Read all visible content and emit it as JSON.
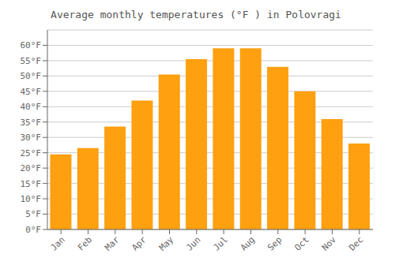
{
  "chart_data": {
    "type": "bar",
    "title": "Average monthly temperatures (°F ) in Polovragi",
    "categories": [
      "Jan",
      "Feb",
      "Mar",
      "Apr",
      "May",
      "Jun",
      "Jul",
      "Aug",
      "Sep",
      "Oct",
      "Nov",
      "Dec"
    ],
    "values": [
      24.5,
      26.5,
      33.5,
      42.0,
      50.5,
      55.5,
      59.0,
      59.0,
      53.0,
      45.0,
      36.0,
      28.0
    ],
    "color": "#FFA010",
    "ylim": [
      0,
      65
    ],
    "yticks": [
      {
        "value": 0,
        "label": "0°F"
      },
      {
        "value": 5,
        "label": "5°F"
      },
      {
        "value": 10,
        "label": "10°F"
      },
      {
        "value": 15,
        "label": "15°F"
      },
      {
        "value": 20,
        "label": "20°F"
      },
      {
        "value": 25,
        "label": "25°F"
      },
      {
        "value": 30,
        "label": "30°F"
      },
      {
        "value": 35,
        "label": "35°F"
      },
      {
        "value": 40,
        "label": "40°F"
      },
      {
        "value": 45,
        "label": "45°F"
      },
      {
        "value": 50,
        "label": "50°F"
      },
      {
        "value": 55,
        "label": "55°F"
      },
      {
        "value": 60,
        "label": "60°F"
      }
    ],
    "grid": true
  }
}
